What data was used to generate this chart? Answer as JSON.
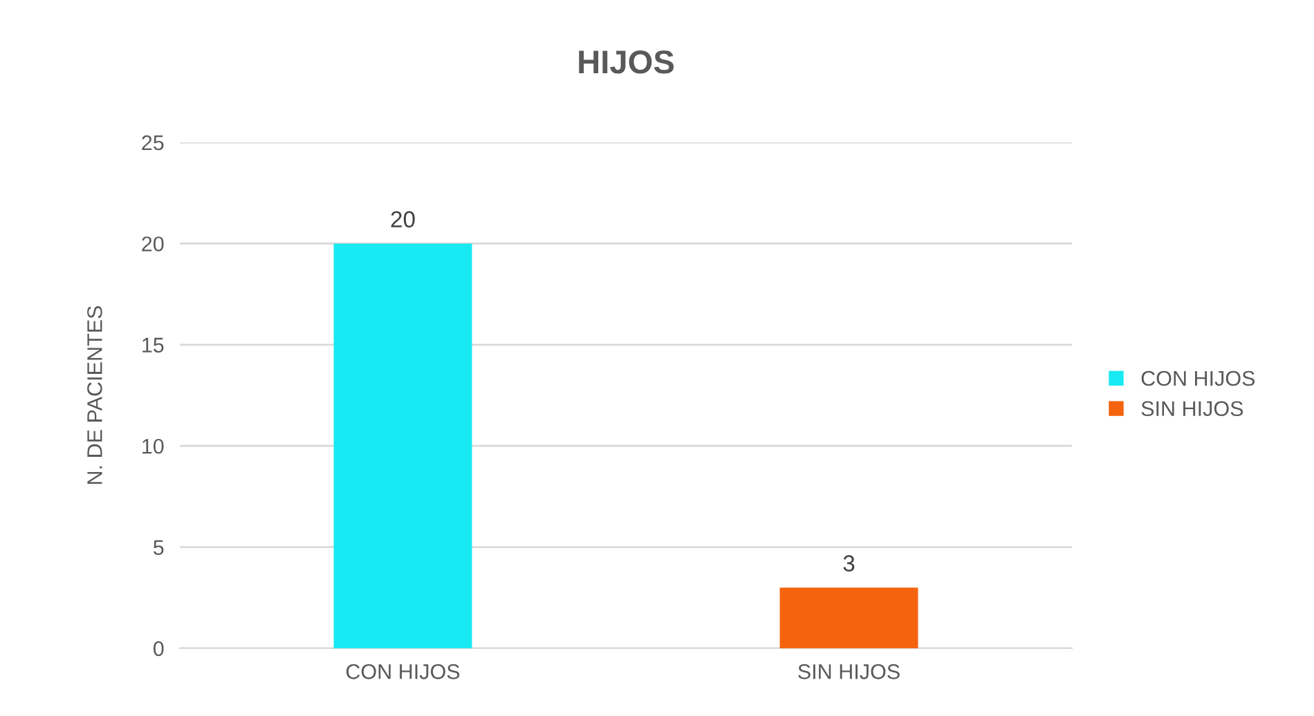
{
  "chart_data": {
    "type": "bar",
    "title": "HIJOS",
    "ylabel": "N. DE PACIENTES",
    "categories": [
      "CON HIJOS",
      "SIN HIJOS"
    ],
    "series": [
      {
        "name": "CON HIJOS",
        "color": "#19e9f2",
        "values": [
          20,
          null
        ]
      },
      {
        "name": "SIN HIJOS",
        "color": "#f4640f",
        "values": [
          null,
          3
        ]
      }
    ],
    "ylim": [
      0,
      25
    ],
    "yticks": [
      0,
      5,
      10,
      15,
      20,
      25
    ],
    "grid": "y",
    "legend": "right",
    "data_labels": true
  }
}
